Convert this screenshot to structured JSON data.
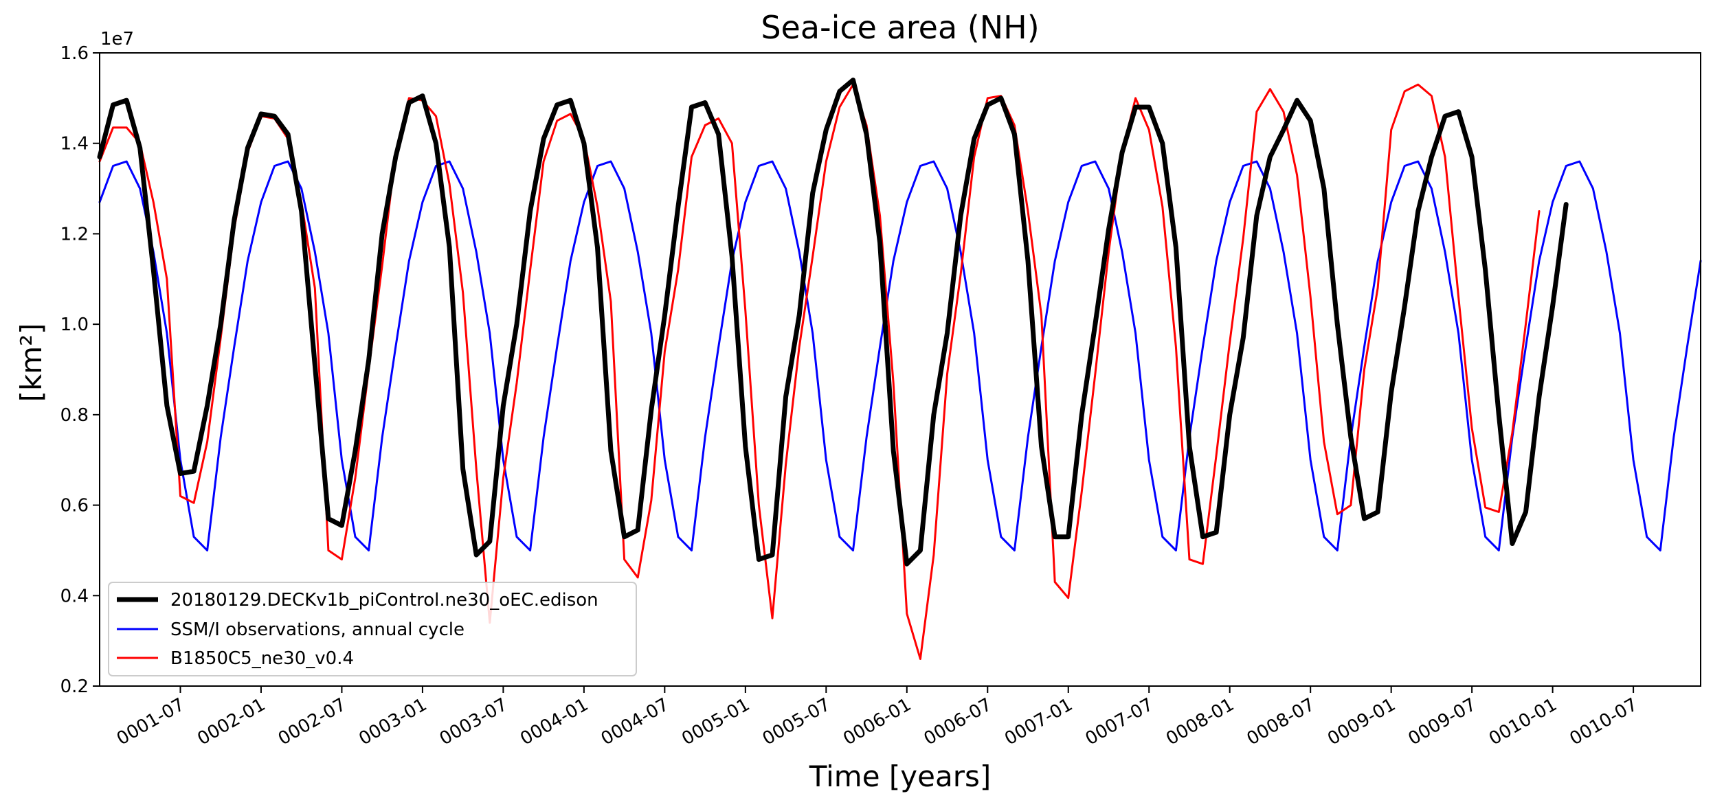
{
  "chart_data": {
    "type": "line",
    "title": "Sea-ice area (NH)",
    "xlabel": "Time [years]",
    "ylabel": "[km²]",
    "y_offset_label": "1e7",
    "x_range_months": [
      1,
      120
    ],
    "ylim": [
      0.2,
      1.6
    ],
    "y_ticks": [
      0.2,
      0.4,
      0.6,
      0.8,
      1.0,
      1.2,
      1.4,
      1.6
    ],
    "y_tick_labels": [
      "0.2",
      "0.4",
      "0.6",
      "0.8",
      "1.0",
      "1.2",
      "1.4",
      "1.6"
    ],
    "x_ticks": [
      7,
      13,
      19,
      25,
      31,
      37,
      43,
      49,
      55,
      61,
      67,
      73,
      79,
      85,
      91,
      97,
      103,
      109,
      115
    ],
    "x_tick_labels": [
      "0001-07",
      "0002-01",
      "0002-07",
      "0003-01",
      "0003-07",
      "0004-01",
      "0004-07",
      "0005-01",
      "0005-07",
      "0006-01",
      "0006-07",
      "0007-01",
      "0007-07",
      "0008-01",
      "0008-07",
      "0009-01",
      "0009-07",
      "0010-01",
      "0010-07"
    ],
    "grid": false,
    "legend_position": "lower-left",
    "series": [
      {
        "name": "20180129.DECKv1b_piControl.ne30_oEC.edison",
        "color": "#000000",
        "values": [
          1.37,
          1.485,
          1.495,
          1.39,
          1.12,
          0.82,
          0.67,
          0.675,
          0.82,
          1.0,
          1.23,
          1.39,
          1.465,
          1.46,
          1.42,
          1.25,
          0.91,
          0.57,
          0.555,
          0.72,
          0.92,
          1.2,
          1.37,
          1.49,
          1.505,
          1.4,
          1.17,
          0.68,
          0.49,
          0.52,
          0.82,
          1.0,
          1.25,
          1.41,
          1.485,
          1.495,
          1.4,
          1.17,
          0.72,
          0.53,
          0.545,
          0.81,
          1.02,
          1.26,
          1.48,
          1.49,
          1.42,
          1.15,
          0.73,
          0.48,
          0.49,
          0.84,
          1.02,
          1.29,
          1.43,
          1.515,
          1.54,
          1.42,
          1.18,
          0.72,
          0.47,
          0.5,
          0.8,
          0.98,
          1.24,
          1.41,
          1.485,
          1.5,
          1.42,
          1.14,
          0.73,
          0.53,
          0.53,
          0.8,
          1.0,
          1.21,
          1.38,
          1.48,
          1.48,
          1.4,
          1.17,
          0.73,
          0.53,
          0.54,
          0.8,
          0.97,
          1.24,
          1.37,
          1.43,
          1.495,
          1.45,
          1.3,
          1.0,
          0.75,
          0.57,
          0.585,
          0.85,
          1.04,
          1.25,
          1.37,
          1.46,
          1.47,
          1.37,
          1.12,
          0.8,
          0.515,
          0.585,
          0.84,
          1.04,
          1.265
        ]
      },
      {
        "name": "SSM/I observations, annual cycle",
        "color": "#0000ff",
        "values": [
          1.27,
          1.35,
          1.36,
          1.3,
          1.16,
          0.98,
          0.7,
          0.53,
          0.5,
          0.75,
          0.95,
          1.14,
          1.27,
          1.35,
          1.36,
          1.3,
          1.16,
          0.98,
          0.7,
          0.53,
          0.5,
          0.75,
          0.95,
          1.14,
          1.27,
          1.35,
          1.36,
          1.3,
          1.16,
          0.98,
          0.7,
          0.53,
          0.5,
          0.75,
          0.95,
          1.14,
          1.27,
          1.35,
          1.36,
          1.3,
          1.16,
          0.98,
          0.7,
          0.53,
          0.5,
          0.75,
          0.95,
          1.14,
          1.27,
          1.35,
          1.36,
          1.3,
          1.16,
          0.98,
          0.7,
          0.53,
          0.5,
          0.75,
          0.95,
          1.14,
          1.27,
          1.35,
          1.36,
          1.3,
          1.16,
          0.98,
          0.7,
          0.53,
          0.5,
          0.75,
          0.95,
          1.14,
          1.27,
          1.35,
          1.36,
          1.3,
          1.16,
          0.98,
          0.7,
          0.53,
          0.5,
          0.75,
          0.95,
          1.14,
          1.27,
          1.35,
          1.36,
          1.3,
          1.16,
          0.98,
          0.7,
          0.53,
          0.5,
          0.75,
          0.95,
          1.14,
          1.27,
          1.35,
          1.36,
          1.3,
          1.16,
          0.98,
          0.7,
          0.53,
          0.5,
          0.75,
          0.95,
          1.14,
          1.27,
          1.35,
          1.36,
          1.3,
          1.16,
          0.98,
          0.7,
          0.53,
          0.5,
          0.75,
          0.95,
          1.14
        ]
      },
      {
        "name": "B1850C5_ne30_v0.4",
        "color": "#ff0000",
        "values": [
          1.36,
          1.435,
          1.435,
          1.4,
          1.27,
          1.1,
          0.62,
          0.605,
          0.74,
          0.97,
          1.21,
          1.38,
          1.46,
          1.455,
          1.41,
          1.27,
          1.08,
          0.5,
          0.48,
          0.66,
          0.9,
          1.13,
          1.38,
          1.5,
          1.495,
          1.46,
          1.31,
          1.07,
          0.68,
          0.34,
          0.66,
          0.87,
          1.12,
          1.36,
          1.45,
          1.465,
          1.41,
          1.26,
          1.05,
          0.48,
          0.44,
          0.61,
          0.94,
          1.12,
          1.37,
          1.44,
          1.455,
          1.4,
          1.03,
          0.6,
          0.35,
          0.69,
          0.95,
          1.15,
          1.36,
          1.48,
          1.53,
          1.44,
          1.24,
          0.87,
          0.36,
          0.26,
          0.49,
          0.89,
          1.11,
          1.37,
          1.5,
          1.505,
          1.44,
          1.25,
          1.02,
          0.43,
          0.395,
          0.63,
          0.89,
          1.16,
          1.38,
          1.5,
          1.43,
          1.26,
          0.95,
          0.48,
          0.47,
          0.71,
          0.96,
          1.19,
          1.47,
          1.52,
          1.47,
          1.33,
          1.06,
          0.74,
          0.58,
          0.6,
          0.9,
          1.08,
          1.43,
          1.515,
          1.53,
          1.505,
          1.37,
          1.06,
          0.77,
          0.595,
          0.585,
          0.76,
          1.0,
          1.25
        ]
      }
    ]
  }
}
